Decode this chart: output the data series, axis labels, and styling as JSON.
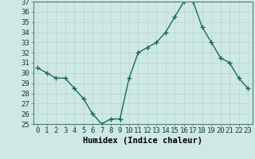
{
  "x": [
    0,
    1,
    2,
    3,
    4,
    5,
    6,
    7,
    8,
    9,
    10,
    11,
    12,
    13,
    14,
    15,
    16,
    17,
    18,
    19,
    20,
    21,
    22,
    23
  ],
  "y": [
    30.5,
    30.0,
    29.5,
    29.5,
    28.5,
    27.5,
    26.0,
    25.0,
    25.5,
    25.5,
    29.5,
    32.0,
    32.5,
    33.0,
    34.0,
    35.5,
    37.0,
    37.0,
    34.5,
    33.0,
    31.5,
    31.0,
    29.5,
    28.5
  ],
  "xlabel": "Humidex (Indice chaleur)",
  "ylim": [
    25,
    37
  ],
  "xlim_min": -0.5,
  "xlim_max": 23.5,
  "yticks": [
    25,
    26,
    27,
    28,
    29,
    30,
    31,
    32,
    33,
    34,
    35,
    36,
    37
  ],
  "xticks": [
    0,
    1,
    2,
    3,
    4,
    5,
    6,
    7,
    8,
    9,
    10,
    11,
    12,
    13,
    14,
    15,
    16,
    17,
    18,
    19,
    20,
    21,
    22,
    23
  ],
  "line_color": "#1a6b5a",
  "marker": "+",
  "marker_size": 4,
  "bg_color": "#cde8e5",
  "grid_color": "#b8d4d0",
  "fig_bg": "#cde8e5",
  "xlabel_fontsize": 7.5,
  "tick_fontsize": 6.5,
  "line_width": 1.0
}
